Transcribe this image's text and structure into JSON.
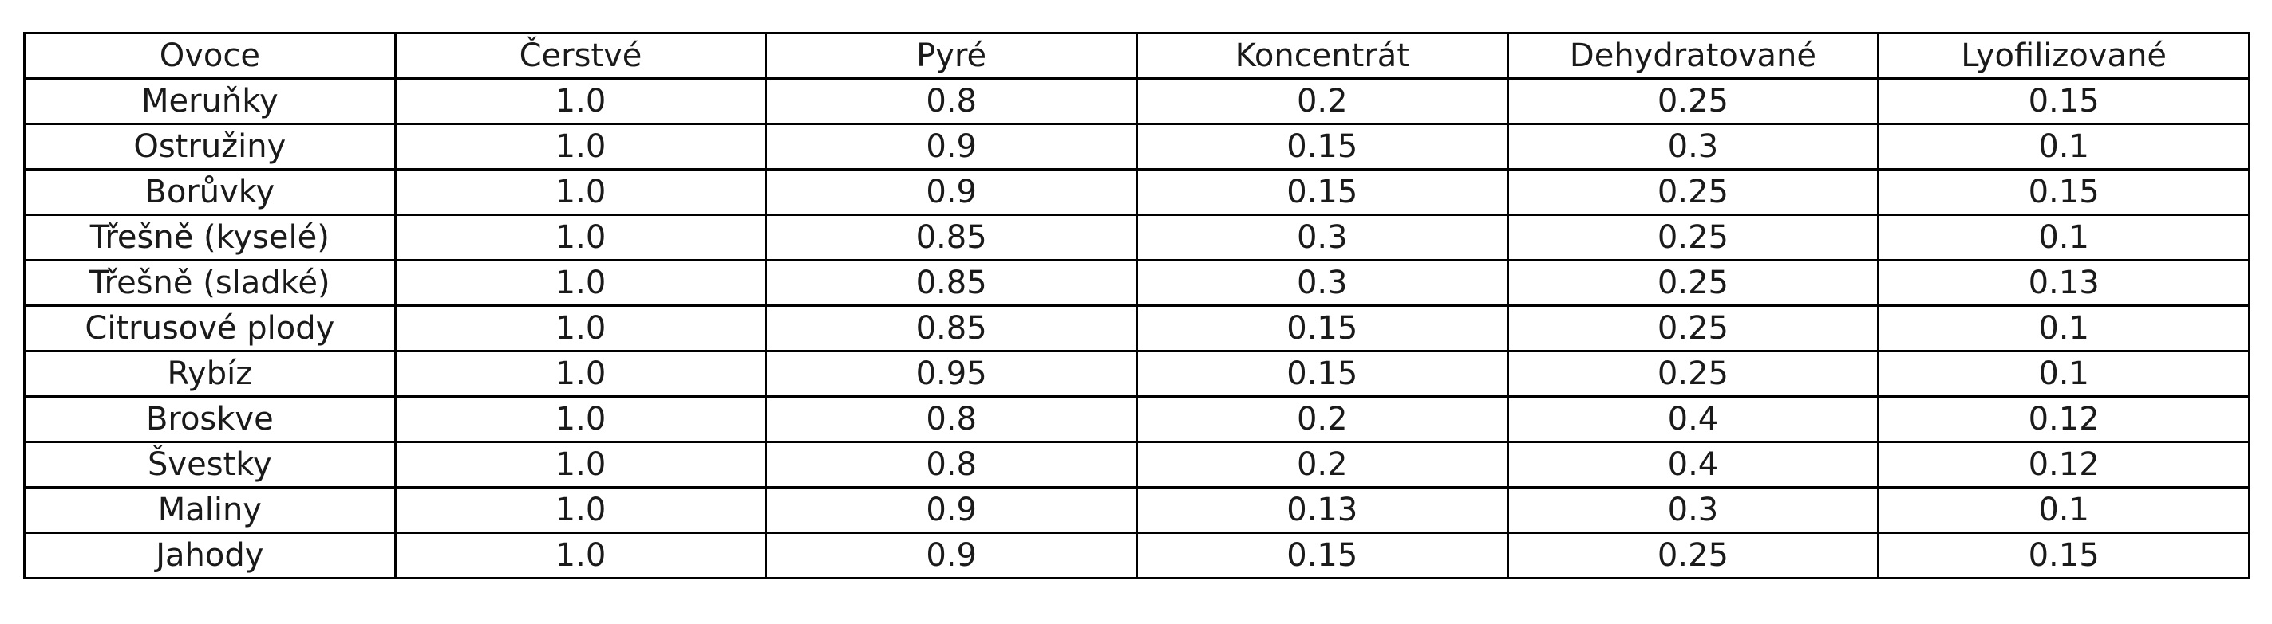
{
  "table": {
    "header": [
      "Ovoce",
      "Čerstvé",
      "Pyré",
      "Koncentrát",
      "Dehydratované",
      "Lyofilizované"
    ],
    "rows": [
      [
        "Meruňky",
        "1.0",
        "0.8",
        "0.2",
        "0.25",
        "0.15"
      ],
      [
        "Ostružiny",
        "1.0",
        "0.9",
        "0.15",
        "0.3",
        "0.1"
      ],
      [
        "Borůvky",
        "1.0",
        "0.9",
        "0.15",
        "0.25",
        "0.15"
      ],
      [
        "Třešně (kyselé)",
        "1.0",
        "0.85",
        "0.3",
        "0.25",
        "0.1"
      ],
      [
        "Třešně (sladké)",
        "1.0",
        "0.85",
        "0.3",
        "0.25",
        "0.13"
      ],
      [
        "Citrusové plody",
        "1.0",
        "0.85",
        "0.15",
        "0.25",
        "0.1"
      ],
      [
        "Rybíz",
        "1.0",
        "0.95",
        "0.15",
        "0.25",
        "0.1"
      ],
      [
        "Broskve",
        "1.0",
        "0.8",
        "0.2",
        "0.4",
        "0.12"
      ],
      [
        "Švestky",
        "1.0",
        "0.8",
        "0.2",
        "0.4",
        "0.12"
      ],
      [
        "Maliny",
        "1.0",
        "0.9",
        "0.13",
        "0.3",
        "0.1"
      ],
      [
        "Jahody",
        "1.0",
        "0.9",
        "0.15",
        "0.25",
        "0.15"
      ]
    ]
  }
}
